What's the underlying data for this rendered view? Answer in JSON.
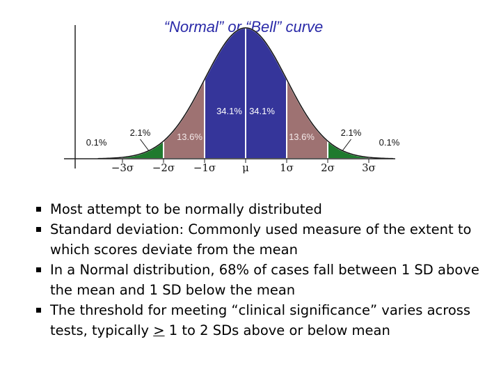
{
  "slide": {
    "bullets": [
      {
        "before": "Most attempt to be normally distributed",
        "underlined": "",
        "after": ""
      },
      {
        "before": "Standard deviation:  Commonly used measure of the extent to which scores deviate from the mean",
        "underlined": "",
        "after": ""
      },
      {
        "before": "In a Normal distribution, 68% of cases fall between 1 SD above the mean and 1 SD below the mean",
        "underlined": "",
        "after": ""
      },
      {
        "before": "The threshold for  meeting “clinical significance” varies across tests, typically ",
        "underlined": ">",
        "after": " 1 to 2 SDs above or below mean"
      }
    ]
  },
  "chart_data": {
    "type": "area",
    "title": "“Normal” or “Bell” curve",
    "xlabel": "",
    "ylabel": "",
    "xlim": [
      -3.6,
      3.6
    ],
    "x_tick_labels": [
      "−3σ",
      "−2σ",
      "−1σ",
      "μ",
      "1σ",
      "2σ",
      "3σ"
    ],
    "x_tick_values": [
      -3,
      -2,
      -1,
      0,
      1,
      2,
      3
    ],
    "regions": [
      {
        "from": -3,
        "to": -2,
        "percent": "2.1%",
        "color": "#1f7a2e"
      },
      {
        "from": -2,
        "to": -1,
        "percent": "13.6%",
        "color": "#9e7272"
      },
      {
        "from": -1,
        "to": 0,
        "percent": "34.1%",
        "color": "#35359a"
      },
      {
        "from": 0,
        "to": 1,
        "percent": "34.1%",
        "color": "#35359a"
      },
      {
        "from": 1,
        "to": 2,
        "percent": "13.6%",
        "color": "#9e7272"
      },
      {
        "from": 2,
        "to": 3,
        "percent": "2.1%",
        "color": "#1f7a2e"
      }
    ],
    "tails": [
      {
        "side": "left",
        "percent": "0.1%"
      },
      {
        "side": "right",
        "percent": "0.1%"
      }
    ],
    "grid": false,
    "legend": "none"
  }
}
